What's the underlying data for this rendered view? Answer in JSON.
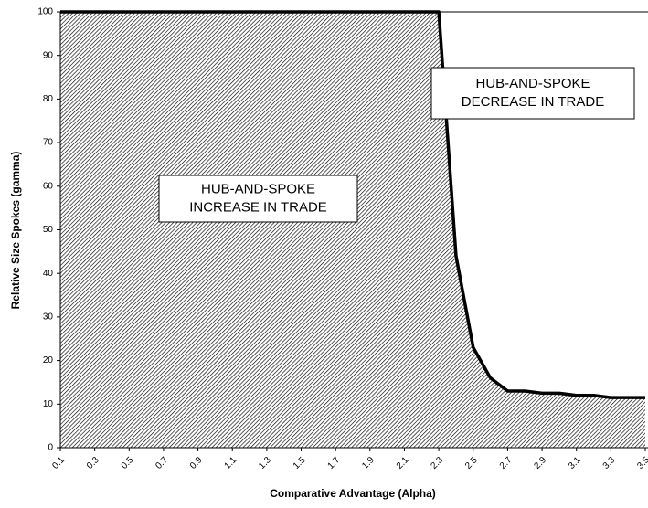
{
  "chart_data": {
    "type": "area",
    "xlabel": "Comparative Advantage (Alpha)",
    "ylabel": "Relative Size Spokes (gamma)",
    "x": [
      0.1,
      0.2,
      0.3,
      0.4,
      0.5,
      0.6,
      0.7,
      0.8,
      0.9,
      1.0,
      1.1,
      1.2,
      1.3,
      1.4,
      1.5,
      1.6,
      1.7,
      1.8,
      1.9,
      2.0,
      2.1,
      2.2,
      2.3,
      2.4,
      2.5,
      2.6,
      2.7,
      2.8,
      2.9,
      3.0,
      3.1,
      3.2,
      3.3,
      3.4,
      3.5
    ],
    "values": [
      100,
      100,
      100,
      100,
      100,
      100,
      100,
      100,
      100,
      100,
      100,
      100,
      100,
      100,
      100,
      100,
      100,
      100,
      100,
      100,
      100,
      100,
      100,
      44,
      23,
      16,
      13,
      13,
      12.5,
      12.5,
      12,
      12,
      11.5,
      11.5,
      11.5
    ],
    "color": "#000000",
    "xlim": [
      0.1,
      3.5
    ],
    "xticks": [
      0.1,
      0.3,
      0.5,
      0.7,
      0.9,
      1.1,
      1.3,
      1.5,
      1.7,
      1.9,
      2.1,
      2.3,
      2.5,
      2.7,
      2.9,
      3.1,
      3.3,
      3.5
    ],
    "ylim": [
      0,
      100
    ],
    "yticks": [
      0,
      10,
      20,
      30,
      40,
      50,
      60,
      70,
      80,
      90,
      100
    ],
    "grid": false,
    "annotations": [
      {
        "lines": [
          "HUB-AND-SPOKE",
          "INCREASE IN TRADE"
        ]
      },
      {
        "lines": [
          "HUB-AND-SPOKE",
          "DECREASE IN TRADE"
        ]
      }
    ]
  }
}
